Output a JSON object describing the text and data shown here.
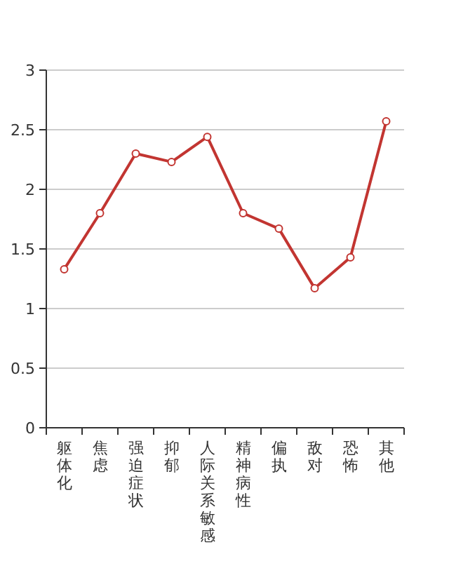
{
  "chart_data": {
    "type": "line",
    "categories": [
      "躯体化",
      "焦虑",
      "强迫症状",
      "抑郁",
      "人际关系敏感",
      "精神病性",
      "偏执",
      "敌对",
      "恐怖",
      "其他"
    ],
    "series": [
      {
        "color": "#c23531",
        "values": [
          1.33,
          1.8,
          2.3,
          2.23,
          2.44,
          1.8,
          1.67,
          1.17,
          1.43,
          2.57
        ]
      }
    ],
    "ylim": [
      0,
      3
    ],
    "yticks": [
      0,
      0.5,
      1,
      1.5,
      2,
      2.5,
      3
    ],
    "grid": "y",
    "marker": "circle"
  }
}
